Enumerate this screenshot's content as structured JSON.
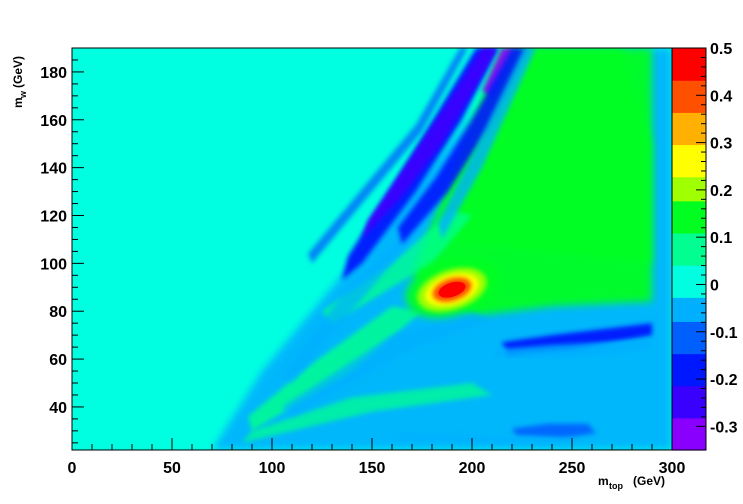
{
  "chart_data": {
    "type": "heatmap",
    "title": "",
    "xlabel": "m_top (GeV)",
    "ylabel": "m_w (GeV)",
    "xlabel_parts": {
      "main": "m",
      "sub": "top",
      "unit": "(GeV)"
    },
    "ylabel_parts": {
      "main": "m",
      "sub": "w",
      "unit": "(GeV)"
    },
    "xlim": [
      0,
      300
    ],
    "ylim": [
      22,
      190
    ],
    "x_ticks": [
      0,
      50,
      100,
      150,
      200,
      250,
      300
    ],
    "y_ticks": [
      40,
      60,
      80,
      100,
      120,
      140,
      160,
      180
    ],
    "z_range": [
      -0.35,
      0.5
    ],
    "z_ticks": [
      -0.3,
      -0.2,
      -0.1,
      0,
      0.1,
      0.2,
      0.3,
      0.4,
      0.5
    ],
    "colorbar_palette": [
      "#8a00ff",
      "#3a00ff",
      "#0018ff",
      "#0060ff",
      "#00b0ff",
      "#00ffe0",
      "#00ff90",
      "#00ff20",
      "#a0ff00",
      "#ffff00",
      "#ffb000",
      "#ff5000",
      "#ff0000"
    ],
    "background_value": 0,
    "features": [
      {
        "name": "peak",
        "x": 190,
        "y": 88,
        "value": 0.5
      },
      {
        "name": "positive-halo",
        "x": 190,
        "y": 90,
        "value": 0.15
      },
      {
        "name": "negative-band-upper",
        "x_range": [
          145,
          215
        ],
        "y_range": [
          100,
          190
        ],
        "value": -0.3
      },
      {
        "name": "negative-band-second",
        "x_range": [
          170,
          230
        ],
        "y_range": [
          110,
          190
        ],
        "value": -0.2
      },
      {
        "name": "negative-band-right",
        "x_range": [
          215,
          290
        ],
        "y_range": [
          62,
          75
        ],
        "value": -0.2
      },
      {
        "name": "negative-band-bottom",
        "x_range": [
          220,
          260
        ],
        "y_range": [
          26,
          32
        ],
        "value": -0.12
      },
      {
        "name": "positive-plateau-right",
        "x_range": [
          210,
          290
        ],
        "y_range": [
          80,
          190
        ],
        "value": 0.15
      }
    ]
  }
}
